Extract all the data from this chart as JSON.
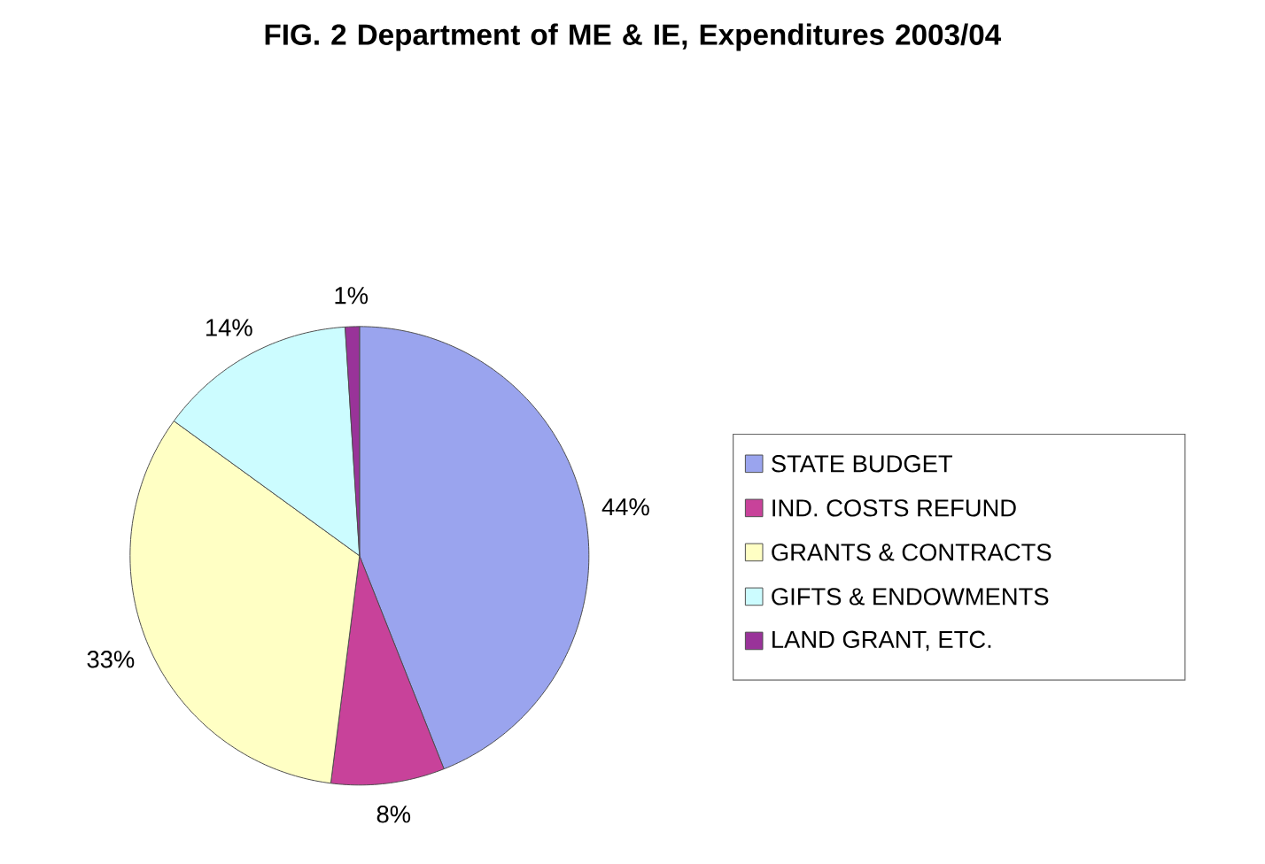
{
  "chart_data": {
    "type": "pie",
    "title": "FIG. 2 Department of ME & IE, Expenditures 2003/04",
    "categories": [
      "STATE BUDGET",
      "IND. COSTS REFUND",
      "GRANTS & CONTRACTS",
      "GIFTS & ENDOWMENTS",
      "LAND GRANT, ETC."
    ],
    "values": [
      44,
      8,
      33,
      14,
      1
    ],
    "value_labels": [
      "44%",
      "8%",
      "33%",
      "14%",
      "1%"
    ],
    "colors": [
      "#9aa4ee",
      "#c8429a",
      "#ffffc4",
      "#ccfcff",
      "#993399"
    ],
    "legend": "right"
  }
}
